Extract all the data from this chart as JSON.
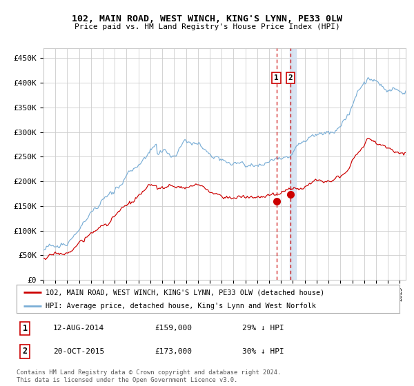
{
  "title1": "102, MAIN ROAD, WEST WINCH, KING'S LYNN, PE33 0LW",
  "title2": "Price paid vs. HM Land Registry's House Price Index (HPI)",
  "legend1": "102, MAIN ROAD, WEST WINCH, KING'S LYNN, PE33 0LW (detached house)",
  "legend2": "HPI: Average price, detached house, King's Lynn and West Norfolk",
  "annotation1_date": "12-AUG-2014",
  "annotation1_price": "£159,000",
  "annotation1_hpi": "29% ↓ HPI",
  "annotation1_year": 2014.61,
  "annotation1_value": 159000,
  "annotation2_date": "20-OCT-2015",
  "annotation2_price": "£173,000",
  "annotation2_hpi": "30% ↓ HPI",
  "annotation2_year": 2015.8,
  "annotation2_value": 173000,
  "footer": "Contains HM Land Registry data © Crown copyright and database right 2024.\nThis data is licensed under the Open Government Licence v3.0.",
  "line_color_red": "#cc0000",
  "line_color_blue": "#7aaed6",
  "vline_shade_color": "#d0dff0",
  "vline_dash_color": "#cc0000",
  "ylim": [
    0,
    470000
  ],
  "xlim_start": 1995.0,
  "xlim_end": 2025.5,
  "background_color": "#ffffff",
  "grid_color": "#cccccc",
  "box_color": "#cc0000"
}
